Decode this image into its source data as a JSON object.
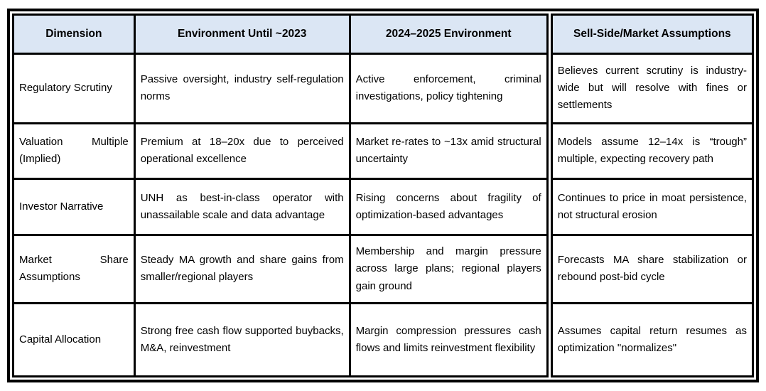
{
  "colors": {
    "header_bg": "#dbe6f4",
    "border": "#000000",
    "text": "#000000"
  },
  "table": {
    "headers": [
      "Dimension",
      "Environment Until ~2023",
      "2024–2025 Environment",
      "Sell-Side/Market Assumptions"
    ],
    "rows": [
      {
        "cells": [
          "Regulatory Scrutiny",
          "Passive oversight, industry self-regulation norms",
          "Active enforcement, criminal investigations, policy tightening",
          "Believes current scrutiny is industry-wide but will resolve with fines or settlements"
        ]
      },
      {
        "cells": [
          "Valuation Multiple (Implied)",
          "Premium at 18–20x due to perceived operational excellence",
          "Market re-rates to ~13x amid structural uncertainty",
          "Models assume 12–14x is “trough” multiple, expecting recovery path"
        ]
      },
      {
        "cells": [
          "Investor Narrative",
          "UNH as best-in-class operator with unassailable scale and data advantage",
          "Rising concerns about fragility of optimization-based advantages",
          "Continues to price in moat persistence, not structural erosion"
        ]
      },
      {
        "cells": [
          "Market Share Assumptions",
          "Steady MA growth and share gains from smaller/regional players",
          "Membership and margin pressure across large plans; regional players gain ground",
          "Forecasts MA share stabilization or rebound post-bid cycle"
        ]
      },
      {
        "cells": [
          "Capital Allocation",
          "Strong free cash flow supported buybacks, M&A, reinvestment",
          "Margin compression pressures cash flows and limits reinvestment flexibility",
          "Assumes capital return resumes as optimization \"normalizes\""
        ]
      }
    ]
  }
}
